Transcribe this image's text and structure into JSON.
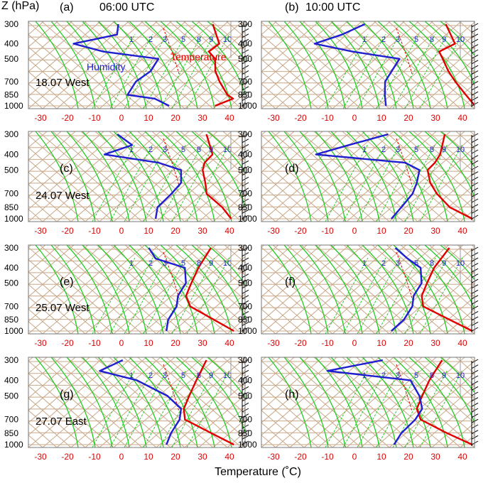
{
  "header": {
    "yaxis_title": "Z (hPa)",
    "time_left": "06:00 UTC",
    "time_right": "10:00 UTC"
  },
  "xaxis_title": "Temperature (˚C)",
  "x_ticks": [
    "-30",
    "-20",
    "-10",
    "0",
    "10",
    "20",
    "30",
    "40"
  ],
  "y_ticks": [
    "300",
    "400",
    "500",
    "700",
    "850",
    "1000"
  ],
  "mixing_labels": [
    "1",
    "2",
    "3",
    "5",
    "8",
    "9",
    "10"
  ],
  "series_labels": {
    "humidity": "Humidity",
    "temperature": "Temperature"
  },
  "colors": {
    "temperature": "#e00000",
    "humidity": "#1f1fd0",
    "adiabat": "#22cc22",
    "isotherm_grid": "#c8a888",
    "axis_tick_labels": "#e00000"
  },
  "chart_data": [
    {
      "type": "line",
      "panel": "(a)",
      "label": "18.07 West",
      "time": "06:00 UTC",
      "xlim": [
        -35,
        45
      ],
      "ylabel": "Z (hPa)",
      "xlabel": "Temperature (˚C)",
      "series": [
        {
          "name": "Temperature",
          "p": [
            300,
            400,
            450,
            500,
            600,
            700,
            850,
            900,
            1000
          ],
          "t": [
            14,
            21,
            19,
            23,
            26,
            30,
            36,
            39,
            34
          ]
        },
        {
          "name": "Humidity",
          "p": [
            300,
            350,
            400,
            450,
            500,
            600,
            700,
            850,
            900,
            1000
          ],
          "t": [
            -21,
            -19,
            -33,
            -20,
            2,
            2,
            -1,
            -1,
            10,
            17
          ]
        }
      ]
    },
    {
      "type": "line",
      "panel": "(b)",
      "time": "10:00 UTC",
      "xlim": [
        -35,
        45
      ],
      "series": [
        {
          "name": "Temperature",
          "p": [
            300,
            400,
            450,
            500,
            600,
            700,
            850,
            1000
          ],
          "t": [
            14,
            22,
            18,
            21,
            26,
            31,
            38,
            44
          ]
        },
        {
          "name": "Humidity",
          "p": [
            300,
            350,
            400,
            450,
            500,
            600,
            700,
            850,
            1000
          ],
          "t": [
            -16,
            -22,
            -30,
            -14,
            5,
            5,
            5,
            8,
            11
          ]
        }
      ]
    },
    {
      "type": "line",
      "panel": "(c)",
      "label": "24.07 West",
      "time": "06:00 UTC",
      "xlim": [
        -35,
        45
      ],
      "series": [
        {
          "name": "Temperature",
          "p": [
            300,
            400,
            450,
            500,
            600,
            700,
            850,
            1000
          ],
          "t": [
            11,
            18,
            17,
            18,
            22,
            25,
            34,
            40
          ]
        },
        {
          "name": "Humidity",
          "p": [
            300,
            350,
            400,
            450,
            500,
            600,
            700,
            850,
            1000
          ],
          "t": [
            -22,
            -14,
            -22,
            0,
            10,
            13,
            12,
            10,
            12
          ]
        }
      ]
    },
    {
      "type": "line",
      "panel": "(d)",
      "time": "10:00 UTC",
      "xlim": [
        -35,
        45
      ],
      "series": [
        {
          "name": "Temperature",
          "p": [
            300,
            400,
            450,
            500,
            600,
            700,
            850,
            1000
          ],
          "t": [
            13,
            16,
            16,
            15,
            19,
            24,
            32,
            43
          ]
        },
        {
          "name": "Humidity",
          "p": [
            300,
            350,
            400,
            450,
            500,
            600,
            700,
            850,
            1000
          ],
          "t": [
            -8,
            -20,
            -30,
            5,
            12,
            14,
            15,
            14,
            13
          ]
        }
      ]
    },
    {
      "type": "line",
      "panel": "(e)",
      "label": "25.07 West",
      "time": "06:00 UTC",
      "xlim": [
        -35,
        45
      ],
      "series": [
        {
          "name": "Temperature",
          "p": [
            300,
            400,
            500,
            600,
            700,
            850,
            1000
          ],
          "t": [
            13,
            13,
            14,
            15,
            19,
            31,
            41
          ]
        },
        {
          "name": "Humidity",
          "p": [
            300,
            350,
            400,
            500,
            600,
            700,
            850,
            1000
          ],
          "t": [
            -10,
            -5,
            8,
            12,
            12,
            14,
            14,
            16
          ]
        }
      ]
    },
    {
      "type": "line",
      "panel": "(f)",
      "time": "10:00 UTC",
      "xlim": [
        -35,
        45
      ],
      "series": [
        {
          "name": "Temperature",
          "p": [
            300,
            400,
            500,
            600,
            700,
            850,
            1000
          ],
          "t": [
            15,
            14,
            15,
            16,
            19,
            32,
            43
          ]
        },
        {
          "name": "Humidity",
          "p": [
            300,
            350,
            400,
            500,
            600,
            700,
            850,
            1000
          ],
          "t": [
            -5,
            2,
            9,
            13,
            13,
            15,
            15,
            13
          ]
        }
      ]
    },
    {
      "type": "line",
      "panel": "(g)",
      "label": "27.07 East",
      "time": "06:00 UTC",
      "xlim": [
        -35,
        45
      ],
      "series": [
        {
          "name": "Temperature",
          "p": [
            300,
            400,
            500,
            600,
            700,
            850,
            1000
          ],
          "t": [
            11,
            12,
            13,
            14,
            17,
            30,
            41
          ]
        },
        {
          "name": "Humidity",
          "p": [
            300,
            350,
            400,
            500,
            600,
            700,
            850,
            1000
          ],
          "t": [
            -20,
            -26,
            -10,
            5,
            13,
            15,
            15,
            16
          ]
        }
      ]
    },
    {
      "type": "line",
      "panel": "(h)",
      "time": "10:00 UTC",
      "xlim": [
        -35,
        45
      ],
      "series": [
        {
          "name": "Temperature",
          "p": [
            300,
            400,
            500,
            600,
            700,
            850,
            1000
          ],
          "t": [
            12,
            12,
            13,
            14,
            18,
            31,
            43
          ]
        },
        {
          "name": "Humidity",
          "p": [
            300,
            350,
            400,
            500,
            600,
            700,
            850,
            1000
          ],
          "t": [
            -10,
            -28,
            5,
            12,
            16,
            16,
            14,
            14
          ]
        }
      ]
    }
  ]
}
